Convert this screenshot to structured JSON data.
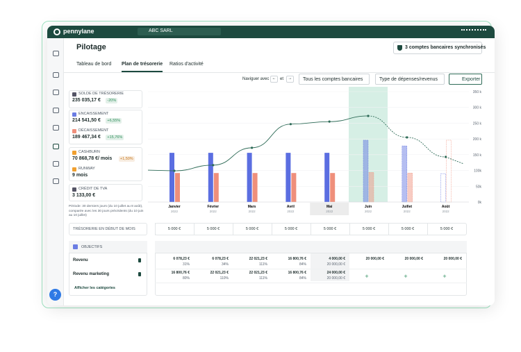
{
  "header": {
    "logo": "pennylane",
    "company": "ABC SARL"
  },
  "page": {
    "title": "Pilotage",
    "sync_button": "3 comptes bancaires synchronisés"
  },
  "tabs": [
    "Tableau de bord",
    "Plan de trésorerie",
    "Ratios d'activité"
  ],
  "active_tab": 1,
  "toolbar": {
    "navigate": "Naviguer avec",
    "prev": "←",
    "and": "et",
    "next": "→",
    "accounts": "Tous les comptes bancaires",
    "type": "Type de dépenses/revenus",
    "export": "Exporter"
  },
  "kpis": [
    {
      "label": "SOLDE DE TRÉSORERIE",
      "value": "235 035,17 €",
      "change": "-20%",
      "change_color": "#2f8f5b"
    },
    {
      "label": "ENCAISSEMENT",
      "value": "214 541,50 €",
      "change": "+6,55%",
      "change_color": "#2f8f5b"
    },
    {
      "label": "DÉCAISSEMENT",
      "value": "189 467,34 €",
      "change": "+15,76%",
      "change_color": "#2f8f5b"
    },
    {
      "label": "CASHBURN",
      "value": "70 868,78 €/ mois",
      "change": "+1,50%",
      "change_color": "#c7791f"
    },
    {
      "label": "RUNWAY",
      "value": "9 mois"
    },
    {
      "label": "CRÉDIT DE TVA",
      "value": "3 133,00 €"
    }
  ],
  "note": "Période: 30 derniers jours (du 10 juillet au 8 août), comparée avec les 30 jours précédents (du 10 juin au 10 juillet)",
  "chart": {
    "categories": [
      "Janvier",
      "Février",
      "Mars",
      "Avril",
      "Mai",
      "Juin",
      "Juillet",
      "Août"
    ],
    "years": [
      "2022",
      "2022",
      "2022",
      "2022",
      "2022",
      "2022",
      "2022",
      "2022"
    ],
    "ylim": [
      0,
      350
    ],
    "yticks": [
      {
        "value": 350,
        "label": "350 k"
      },
      {
        "value": 300,
        "label": "300 k"
      },
      {
        "value": 250,
        "label": "250 k"
      },
      {
        "value": 200,
        "label": "200 k"
      },
      {
        "value": 150,
        "label": "150 k"
      },
      {
        "value": 100,
        "label": "100k"
      },
      {
        "value": 50,
        "label": "50k"
      },
      {
        "value": 0,
        "label": "0k"
      }
    ],
    "series": [
      {
        "color": "#5b6ee1",
        "values": [
          156,
          156,
          156,
          156,
          156,
          196,
          178,
          90
        ]
      },
      {
        "color": "#ef8f7b",
        "values": [
          92,
          92,
          92,
          92,
          92,
          94,
          92,
          196
        ]
      },
      {
        "color": "#2e6b57",
        "type": "line",
        "values": [
          99,
          117,
          172,
          247,
          255,
          273,
          205,
          143
        ]
      }
    ]
  },
  "opening_balance": {
    "label": "TRÉSORERIE EN DÉBUT DE MOIS",
    "values": [
      "5 000 €",
      "5 000 €",
      "5 000 €",
      "5 000 €",
      "5 000 €",
      "5 000 €",
      "5 000 €",
      "5 000 €"
    ]
  },
  "objectives": {
    "title": "OBJECTIFS",
    "show_categories": "Afficher les catégories",
    "rows": [
      {
        "label": "Revenu",
        "cells": [
          [
            "6 078,23 €",
            "31%"
          ],
          [
            "6 078,23 €",
            "34%"
          ],
          [
            "22 021,23 €",
            "111%"
          ],
          [
            "16 800,76 €",
            "84%"
          ],
          [
            "4 000,00 €",
            "20 000,00 €"
          ],
          [
            "20 000,00 €"
          ],
          [
            "20 000,00 €"
          ],
          [
            "20 000,00 €"
          ]
        ]
      },
      {
        "label": "Revenu marketing",
        "cells": [
          [
            "16 800,76 €",
            "80%"
          ],
          [
            "22 021,23 €",
            "110%"
          ],
          [
            "22 021,23 €",
            "111%"
          ],
          [
            "16 800,76 €",
            "84%"
          ],
          [
            "24 000,00 €",
            "20 000,00 €"
          ],
          [
            "+"
          ],
          [
            "+"
          ],
          [
            "+"
          ]
        ]
      }
    ]
  },
  "help": "?"
}
